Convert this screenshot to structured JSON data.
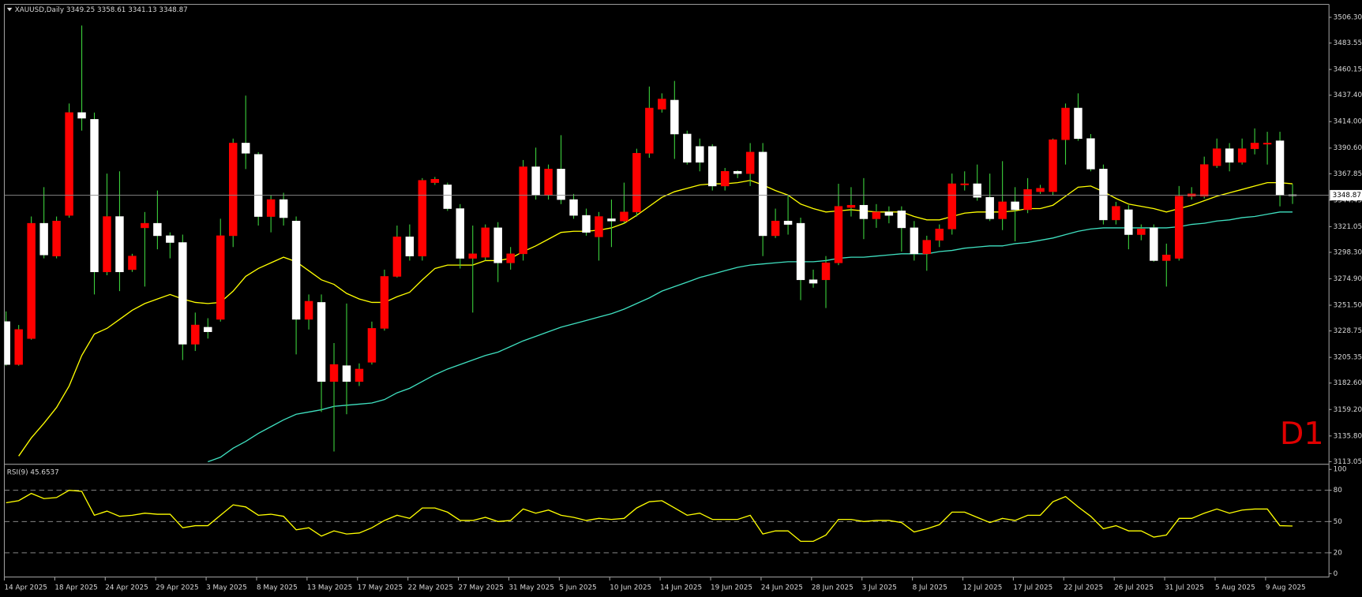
{
  "chart_data": [
    {
      "type": "candlestick",
      "title": "XAUUSD,Daily",
      "watermark": "D1",
      "up_color": "#ff0000",
      "down_color": "#ffffff",
      "wick_color": "#3ccf3c",
      "categories": [
        "14 Apr 2025",
        null,
        null,
        null,
        "18 Apr 2025",
        null,
        null,
        null,
        "24 Apr 2025",
        null,
        null,
        null,
        "29 Apr 2025",
        null,
        null,
        null,
        "3 May 2025",
        null,
        null,
        null,
        "8 May 2025",
        null,
        null,
        null,
        "13 May 2025",
        null,
        null,
        null,
        "17 May 2025",
        null,
        null,
        null,
        "22 May 2025",
        null,
        null,
        null,
        "27 May 2025",
        null,
        null,
        null,
        "31 May 2025",
        null,
        null,
        null,
        "5 Jun 2025",
        null,
        null,
        null,
        "10 Jun 2025",
        null,
        null,
        null,
        "14 Jun 2025",
        null,
        null,
        null,
        "19 Jun 2025",
        null,
        null,
        null,
        "24 Jun 2025",
        null,
        null,
        null,
        "28 Jun 2025",
        null,
        null,
        null,
        "3 Jul 2025",
        null,
        null,
        null,
        "8 Jul 2025",
        null,
        null,
        null,
        "12 Jul 2025",
        null,
        null,
        null,
        "17 Jul 2025",
        null,
        null,
        null,
        "22 Jul 2025",
        null,
        null,
        null,
        "26 Jul 2025",
        null,
        null,
        null,
        "31 Jul 2025",
        null,
        null,
        null,
        "5 Aug 2025",
        null,
        null,
        null,
        "9 Aug 2025",
        null,
        null
      ],
      "ohlc": [
        [
          3237,
          3246,
          3198,
          3199
        ],
        [
          3199,
          3234,
          3198,
          3230
        ],
        [
          3222,
          3330,
          3221,
          3324
        ],
        [
          3324,
          3356,
          3293,
          3296
        ],
        [
          3295,
          3330,
          3293,
          3326
        ],
        [
          3331,
          3430,
          3329,
          3422
        ],
        [
          3422,
          3499,
          3406,
          3417
        ],
        [
          3416,
          3422,
          3261,
          3281
        ],
        [
          3281,
          3368,
          3278,
          3330
        ],
        [
          3330,
          3370,
          3264,
          3281
        ],
        [
          3283,
          3297,
          3281,
          3295
        ],
        [
          3320,
          3334,
          3268,
          3324
        ],
        [
          3324,
          3353,
          3301,
          3313
        ],
        [
          3313,
          3316,
          3293,
          3307
        ],
        [
          3307,
          3314,
          3203,
          3217
        ],
        [
          3217,
          3245,
          3211,
          3234
        ],
        [
          3232,
          3240,
          3222,
          3228
        ],
        [
          3239,
          3328,
          3237,
          3313
        ],
        [
          3313,
          3399,
          3303,
          3395
        ],
        [
          3395,
          3437,
          3372,
          3386
        ],
        [
          3385,
          3387,
          3322,
          3330
        ],
        [
          3330,
          3349,
          3316,
          3345
        ],
        [
          3345,
          3351,
          3322,
          3329
        ],
        [
          3326,
          3330,
          3208,
          3239
        ],
        [
          3239,
          3261,
          3230,
          3255
        ],
        [
          3254,
          3261,
          3157,
          3184
        ],
        [
          3184,
          3218,
          3122,
          3199
        ],
        [
          3198,
          3253,
          3155,
          3184
        ],
        [
          3184,
          3200,
          3180,
          3195
        ],
        [
          3201,
          3237,
          3199,
          3231
        ],
        [
          3231,
          3283,
          3229,
          3277
        ],
        [
          3277,
          3322,
          3276,
          3312
        ],
        [
          3312,
          3323,
          3291,
          3295
        ],
        [
          3295,
          3364,
          3291,
          3362
        ],
        [
          3360,
          3365,
          3358,
          3363
        ],
        [
          3358,
          3360,
          3335,
          3337
        ],
        [
          3337,
          3341,
          3284,
          3293
        ],
        [
          3293,
          3322,
          3245,
          3297
        ],
        [
          3294,
          3323,
          3291,
          3320
        ],
        [
          3320,
          3325,
          3272,
          3289
        ],
        [
          3289,
          3303,
          3283,
          3297
        ],
        [
          3297,
          3380,
          3291,
          3374
        ],
        [
          3374,
          3391,
          3345,
          3349
        ],
        [
          3349,
          3376,
          3345,
          3372
        ],
        [
          3372,
          3402,
          3341,
          3345
        ],
        [
          3345,
          3350,
          3328,
          3331
        ],
        [
          3331,
          3337,
          3313,
          3316
        ],
        [
          3312,
          3334,
          3291,
          3330
        ],
        [
          3328,
          3345,
          3303,
          3326
        ],
        [
          3326,
          3360,
          3324,
          3334
        ],
        [
          3334,
          3390,
          3330,
          3386
        ],
        [
          3386,
          3445,
          3382,
          3426
        ],
        [
          3425,
          3439,
          3422,
          3434
        ],
        [
          3433,
          3450,
          3381,
          3403
        ],
        [
          3403,
          3406,
          3376,
          3378
        ],
        [
          3392,
          3399,
          3370,
          3378
        ],
        [
          3392,
          3394,
          3353,
          3357
        ],
        [
          3357,
          3373,
          3353,
          3370
        ],
        [
          3370,
          3371,
          3364,
          3368
        ],
        [
          3368,
          3395,
          3357,
          3387
        ],
        [
          3387,
          3395,
          3295,
          3313
        ],
        [
          3313,
          3337,
          3311,
          3326
        ],
        [
          3326,
          3349,
          3314,
          3323
        ],
        [
          3324,
          3329,
          3256,
          3274
        ],
        [
          3274,
          3283,
          3267,
          3271
        ],
        [
          3274,
          3295,
          3249,
          3289
        ],
        [
          3289,
          3359,
          3287,
          3339
        ],
        [
          3338,
          3356,
          3330,
          3340
        ],
        [
          3340,
          3364,
          3310,
          3328
        ],
        [
          3328,
          3341,
          3320,
          3334
        ],
        [
          3334,
          3339,
          3324,
          3331
        ],
        [
          3335,
          3339,
          3299,
          3320
        ],
        [
          3320,
          3326,
          3291,
          3297
        ],
        [
          3297,
          3313,
          3282,
          3309
        ],
        [
          3309,
          3323,
          3303,
          3319
        ],
        [
          3319,
          3368,
          3314,
          3359
        ],
        [
          3358,
          3370,
          3353,
          3359
        ],
        [
          3359,
          3376,
          3344,
          3347
        ],
        [
          3347,
          3368,
          3326,
          3328
        ],
        [
          3328,
          3379,
          3318,
          3343
        ],
        [
          3343,
          3356,
          3308,
          3336
        ],
        [
          3336,
          3364,
          3333,
          3354
        ],
        [
          3352,
          3358,
          3350,
          3355
        ],
        [
          3352,
          3399,
          3349,
          3398
        ],
        [
          3398,
          3430,
          3376,
          3426
        ],
        [
          3426,
          3439,
          3397,
          3399
        ],
        [
          3399,
          3403,
          3370,
          3372
        ],
        [
          3372,
          3376,
          3323,
          3327
        ],
        [
          3327,
          3343,
          3323,
          3339
        ],
        [
          3336,
          3340,
          3301,
          3314
        ],
        [
          3314,
          3323,
          3309,
          3319
        ],
        [
          3320,
          3323,
          3290,
          3291
        ],
        [
          3291,
          3306,
          3268,
          3296
        ],
        [
          3293,
          3357,
          3291,
          3348
        ],
        [
          3348,
          3356,
          3345,
          3350
        ],
        [
          3348,
          3383,
          3346,
          3376
        ],
        [
          3375,
          3399,
          3373,
          3390
        ],
        [
          3390,
          3395,
          3370,
          3378
        ],
        [
          3378,
          3399,
          3376,
          3390
        ],
        [
          3390,
          3408,
          3385,
          3395
        ],
        [
          3394,
          3405,
          3376,
          3395
        ],
        [
          3397,
          3405,
          3339,
          3349
        ],
        [
          3349.25,
          3358.61,
          3341.13,
          3348.87
        ]
      ],
      "lines": [
        {
          "color": "#ffff00",
          "values": [
            null,
            3118,
            3134,
            3147,
            3161,
            3180,
            3207,
            3226,
            3231,
            3239,
            3247,
            3253,
            3257,
            3261,
            3257,
            3254,
            3253,
            3254,
            3264,
            3277,
            3284,
            3289,
            3294,
            3290,
            3282,
            3274,
            3270,
            3262,
            3257,
            3254,
            3254,
            3259,
            3263,
            3274,
            3284,
            3287,
            3287,
            3287,
            3291,
            3291,
            3293,
            3299,
            3304,
            3310,
            3316,
            3317,
            3317,
            3318,
            3320,
            3324,
            3331,
            3339,
            3347,
            3352,
            3355,
            3358,
            3359,
            3359,
            3360,
            3362,
            3358,
            3353,
            3349,
            3341,
            3337,
            3334,
            3335,
            3336,
            3335,
            3334,
            3334,
            3334,
            3330,
            3327,
            3327,
            3330,
            3333,
            3334,
            3334,
            3334,
            3335,
            3337,
            3337,
            3340,
            3348,
            3356,
            3357,
            3352,
            3346,
            3341,
            3339,
            3337,
            3334,
            3337,
            3340,
            3344,
            3348,
            3351,
            3354,
            3357,
            3360,
            3360,
            3359
          ]
        },
        {
          "color": "#3fe0c0",
          "values": [
            null,
            null,
            null,
            null,
            null,
            null,
            null,
            null,
            null,
            null,
            null,
            null,
            null,
            null,
            null,
            null,
            3113,
            3117,
            3125,
            3131,
            3138,
            3144,
            3150,
            3155,
            3157,
            3159,
            3162,
            3163,
            3164,
            3165,
            3168,
            3174,
            3178,
            3184,
            3190,
            3195,
            3199,
            3203,
            3207,
            3210,
            3215,
            3220,
            3224,
            3228,
            3232,
            3235,
            3238,
            3241,
            3244,
            3248,
            3253,
            3258,
            3264,
            3268,
            3272,
            3276,
            3279,
            3282,
            3285,
            3287,
            3288,
            3289,
            3290,
            3290,
            3290,
            3291,
            3293,
            3294,
            3294,
            3295,
            3296,
            3297,
            3297,
            3297,
            3299,
            3300,
            3302,
            3303,
            3304,
            3304,
            3306,
            3307,
            3309,
            3311,
            3314,
            3317,
            3319,
            3320,
            3320,
            3320,
            3320,
            3320,
            3320,
            3321,
            3323,
            3324,
            3326,
            3327,
            3329,
            3330,
            3332,
            3334,
            3334
          ]
        }
      ],
      "ylim": [
        3112.3,
        3517.8
      ],
      "yticks": [
        3113.05,
        {
          "value": 3135.8,
          "label": "3135.80"
        },
        {
          "value": 3159.2,
          "label": "3159.20"
        },
        {
          "value": 3182.6,
          "label": "3182.60"
        },
        3205.35,
        3228.75,
        {
          "value": 3251.5,
          "label": "3251.50"
        },
        {
          "value": 3274.9,
          "label": "3274.90"
        },
        {
          "value": 3298.3,
          "label": "3298.30"
        },
        3321.05,
        3344.45,
        3367.85,
        {
          "value": 3390.6,
          "label": "3390.60"
        },
        {
          "value": 3414,
          "label": "3414.00"
        },
        {
          "value": 3437.4,
          "label": "3437.40"
        },
        3460.15,
        3483.55,
        {
          "value": 3506.3,
          "label": "3506.30"
        }
      ]
    },
    {
      "type": "line",
      "title": "RSI(9)",
      "color": "#ffff00",
      "values": [
        68,
        70,
        77,
        72,
        73,
        80,
        79,
        56,
        60,
        55,
        56,
        58,
        57,
        57,
        44,
        46,
        46,
        56,
        66,
        64,
        56,
        57,
        55,
        42,
        44,
        36,
        41,
        38,
        39,
        44,
        51,
        56,
        53,
        63,
        63,
        59,
        51,
        51,
        54,
        50,
        51,
        62,
        58,
        61,
        56,
        54,
        51,
        53,
        52,
        53,
        63,
        69,
        70,
        63,
        56,
        58,
        52,
        52,
        52,
        56,
        38,
        41,
        41,
        31,
        31,
        37,
        52,
        52,
        50,
        51,
        51,
        49,
        40,
        43,
        47,
        59,
        59,
        54,
        49,
        53,
        51,
        56,
        56,
        69,
        74,
        64,
        55,
        43,
        46,
        41,
        41,
        35,
        37,
        53,
        53,
        58,
        62,
        58,
        61,
        62,
        62,
        46,
        45.6537
      ],
      "ylim": [
        -3.3,
        103.3
      ],
      "yticks": [
        0,
        20,
        50,
        80,
        100
      ]
    }
  ]
}
